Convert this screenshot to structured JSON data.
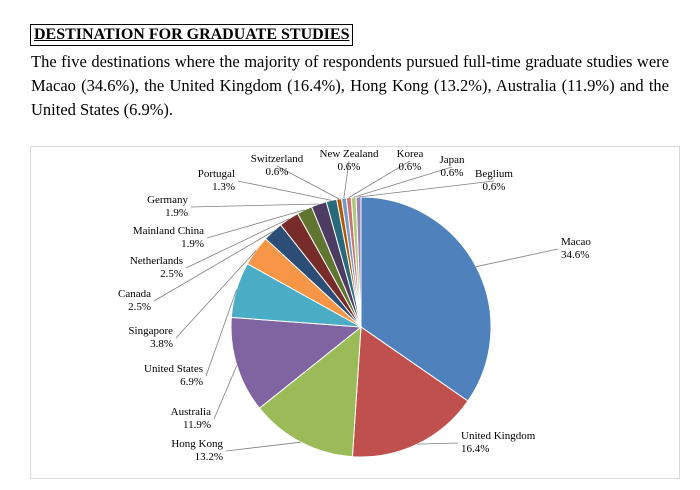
{
  "heading": "DESTINATION FOR GRADUATE STUDIES",
  "intro": "The five destinations where the majority of respondents pursued full-time graduate studies were Macao (34.6%), the United Kingdom (16.4%), Hong Kong (13.2%), Australia (11.9%) and the United States (6.9%).",
  "chart_data": {
    "type": "pie",
    "title": "",
    "start_angle_deg": 0,
    "direction": "clockwise",
    "slices": [
      {
        "label": "Macao",
        "value": 34.6,
        "display": "34.6%",
        "color": "#4F81BD"
      },
      {
        "label": "United Kingdom",
        "value": 16.4,
        "display": "16.4%",
        "color": "#C0504D"
      },
      {
        "label": "Hong Kong",
        "value": 13.2,
        "display": "13.2%",
        "color": "#9BBB59"
      },
      {
        "label": "Australia",
        "value": 11.9,
        "display": "11.9%",
        "color": "#8064A2"
      },
      {
        "label": "United States",
        "value": 6.9,
        "display": "6.9%",
        "color": "#4BACC6"
      },
      {
        "label": "Singapore",
        "value": 3.8,
        "display": "3.8%",
        "color": "#F79646"
      },
      {
        "label": "Canada",
        "value": 2.5,
        "display": "2.5%",
        "color": "#2C4D75"
      },
      {
        "label": "Netherlands",
        "value": 2.5,
        "display": "2.5%",
        "color": "#772C2A"
      },
      {
        "label": "Mainland China",
        "value": 1.9,
        "display": "1.9%",
        "color": "#5F7530"
      },
      {
        "label": "Germany",
        "value": 1.9,
        "display": "1.9%",
        "color": "#4D3B62"
      },
      {
        "label": "Portugal",
        "value": 1.3,
        "display": "1.3%",
        "color": "#276A7C"
      },
      {
        "label": "Switzerland",
        "value": 0.6,
        "display": "0.6%",
        "color": "#B65708"
      },
      {
        "label": "New Zealand",
        "value": 0.6,
        "display": "0.6%",
        "color": "#729ACA"
      },
      {
        "label": "Korea",
        "value": 0.6,
        "display": "0.6%",
        "color": "#CD7371"
      },
      {
        "label": "Japan",
        "value": 0.6,
        "display": "0.6%",
        "color": "#AFC97A"
      },
      {
        "label": "Beglium",
        "value": 0.6,
        "display": "0.6%",
        "color": "#9983B5"
      }
    ]
  }
}
